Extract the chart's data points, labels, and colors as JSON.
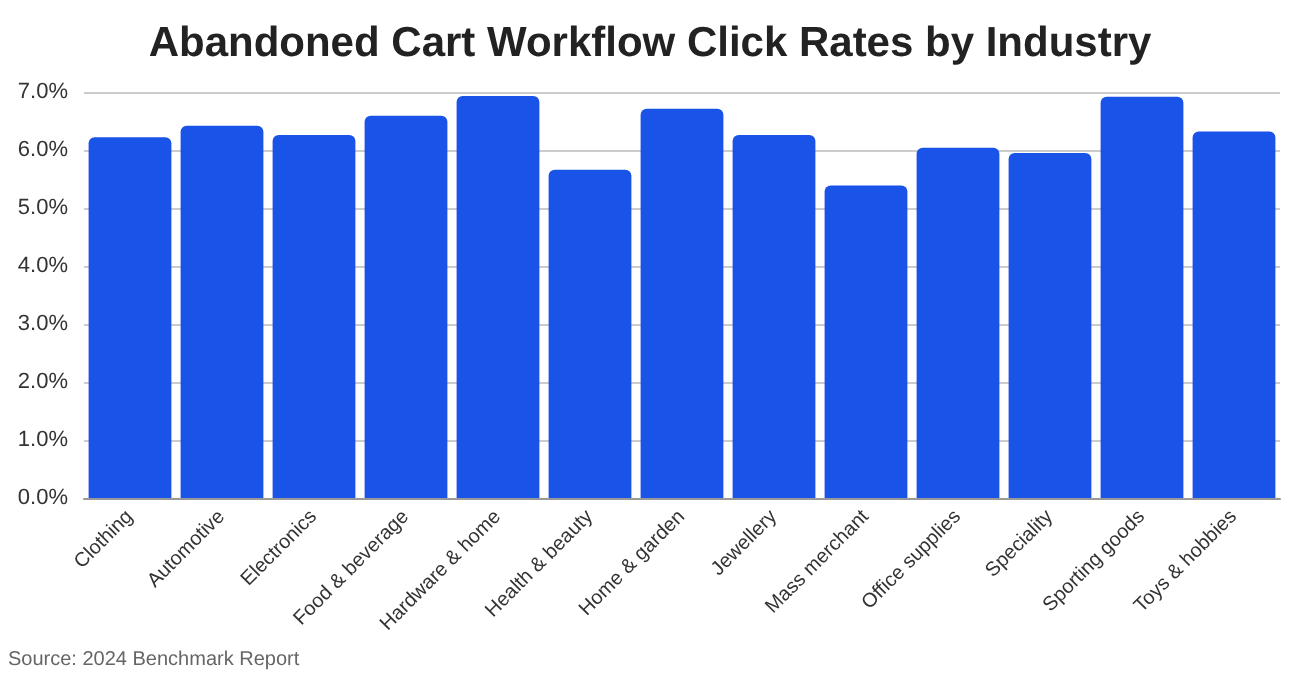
{
  "chart_data": {
    "type": "bar",
    "title": "Abandoned Cart Workflow Click Rates by Industry",
    "categories": [
      "Clothing",
      "Automotive",
      "Electronics",
      "Food & beverage",
      "Hardware & home",
      "Health & beauty",
      "Home & garden",
      "Jewellery",
      "Mass merchant",
      "Office supplies",
      "Speciality",
      "Sporting goods",
      "Toys & hobbies"
    ],
    "values": [
      6.22,
      6.42,
      6.26,
      6.59,
      6.93,
      5.66,
      6.71,
      6.26,
      5.39,
      6.04,
      5.95,
      6.92,
      6.32
    ],
    "color": "#1a53e8",
    "ylim": [
      0,
      7
    ],
    "yticks": [
      {
        "value": 0,
        "label": "0.0%"
      },
      {
        "value": 1,
        "label": "1.0%"
      },
      {
        "value": 2,
        "label": "2.0%"
      },
      {
        "value": 3,
        "label": "3.0%"
      },
      {
        "value": 4,
        "label": "4.0%"
      },
      {
        "value": 5,
        "label": "5.0%"
      },
      {
        "value": 6,
        "label": "6.0%"
      },
      {
        "value": 7,
        "label": "7.0%"
      }
    ],
    "grid": "y",
    "annotations": [
      "Source: 2024 Benchmark Report"
    ]
  }
}
